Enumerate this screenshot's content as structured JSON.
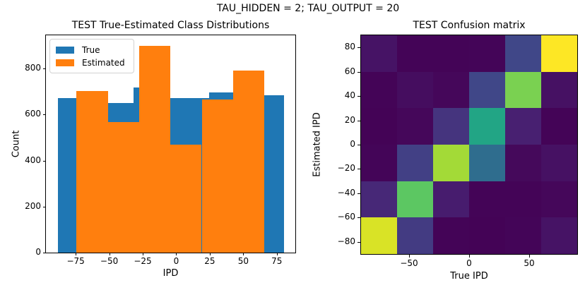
{
  "figure": {
    "suptitle": "TAU_HIDDEN = 2; TAU_OUTPUT = 20",
    "background": "#ffffff",
    "text_color": "#000000"
  },
  "chart_data": [
    {
      "type": "histogram",
      "title": "TEST True-Estimated Class Distributions",
      "xlabel": "IPD",
      "ylabel": "Count",
      "xlim": [
        -97.2,
        88.8
      ],
      "ylim": [
        0,
        945
      ],
      "xticks": [
        -75,
        -50,
        -25,
        0,
        25,
        50,
        75
      ],
      "yticks": [
        0,
        200,
        400,
        600,
        800
      ],
      "legend": {
        "location": "upper left",
        "border_color": "#d2d2d2"
      },
      "series": [
        {
          "name": "True",
          "color": "#1f77b4",
          "bin_edges": [
            -88.1,
            -69.4,
            -50.6,
            -31.9,
            -13.2,
            5.6,
            24.3,
            43.1,
            61.8,
            80.5
          ],
          "counts": [
            673,
            658,
            650,
            718,
            671,
            671,
            698,
            668,
            684
          ]
        },
        {
          "name": "Estimated",
          "color": "#ff7f0e",
          "bin_edges": [
            -74.4,
            -51.0,
            -27.7,
            -4.3,
            19.0,
            42.4,
            65.7
          ],
          "counts": [
            704,
            568,
            900,
            470,
            666,
            791
          ]
        }
      ]
    },
    {
      "type": "heatmap",
      "title": "TEST Confusion matrix",
      "xlabel": "True IPD",
      "ylabel": "Estimated IPD",
      "extent": [
        -90,
        90,
        -90,
        90
      ],
      "xticks": [
        -50,
        0,
        50
      ],
      "yticks": [
        80,
        60,
        40,
        20,
        0,
        -20,
        -40,
        -60,
        -80
      ],
      "colormap": "viridis",
      "vmin": 0,
      "vmax": 900,
      "row_order": "estimated IPD high (top row) to low (bottom row); columns true IPD low (left) to high (right)",
      "values": [
        [
          45,
          8,
          8,
          10,
          190,
          900
        ],
        [
          8,
          30,
          15,
          190,
          720,
          40
        ],
        [
          5,
          15,
          135,
          530,
          80,
          8
        ],
        [
          10,
          170,
          775,
          320,
          20,
          40
        ],
        [
          100,
          670,
          70,
          8,
          8,
          15
        ],
        [
          850,
          155,
          8,
          5,
          10,
          45
        ]
      ]
    }
  ]
}
